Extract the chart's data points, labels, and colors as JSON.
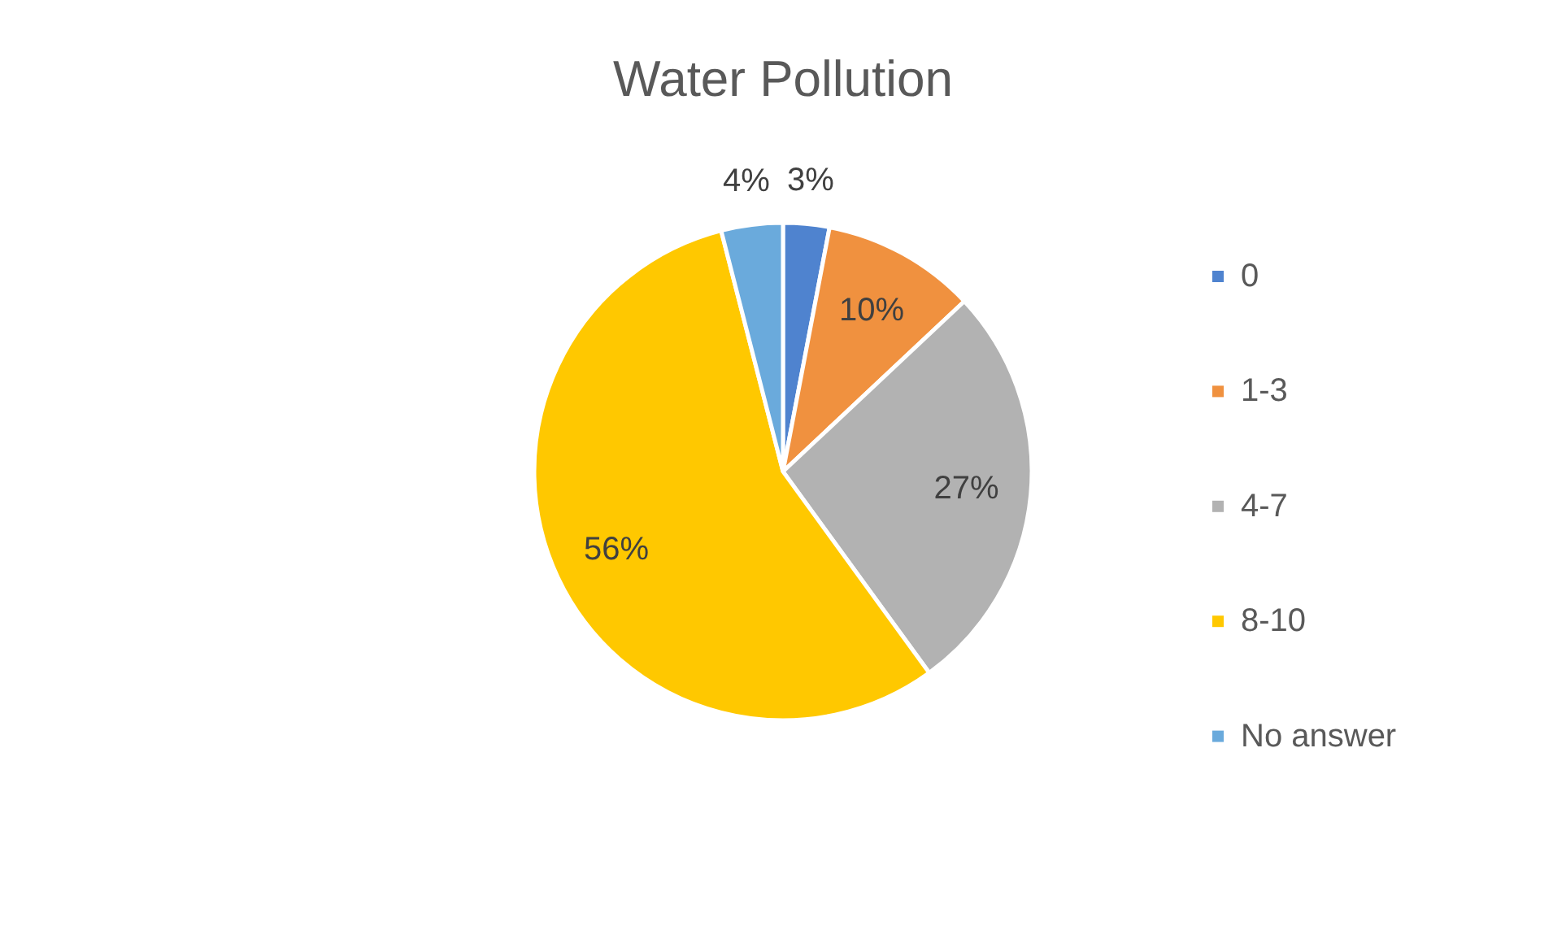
{
  "chart_data": {
    "type": "pie",
    "title": "Water Pollution",
    "categories": [
      "0",
      "1-3",
      "4-7",
      "8-10",
      "No answer"
    ],
    "values": [
      3,
      10,
      27,
      56,
      4
    ],
    "colors": [
      "#4f83cf",
      "#f0913f",
      "#b2b2b2",
      "#ffc800",
      "#6aaadc"
    ],
    "value_labels": [
      "3%",
      "10%",
      "27%",
      "56%",
      "4%"
    ],
    "legend": "right"
  }
}
